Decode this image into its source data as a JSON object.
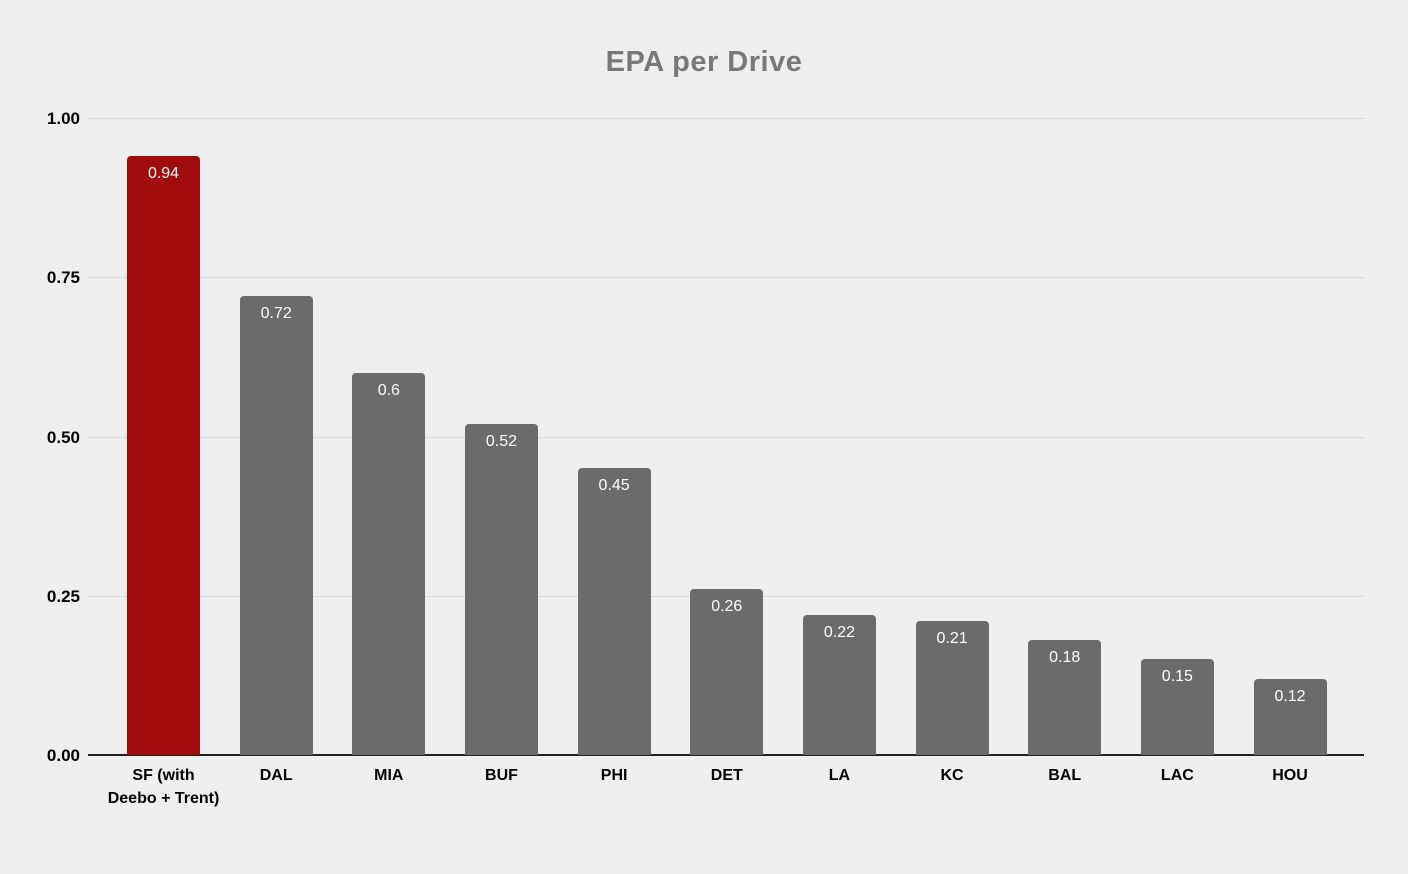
{
  "page": {
    "background_color": "#efefef"
  },
  "chart_data": {
    "type": "bar",
    "title": "EPA per Drive",
    "title_color": "#787878",
    "categories": [
      "SF (with Deebo + Trent)",
      "DAL",
      "MIA",
      "BUF",
      "PHI",
      "DET",
      "LA",
      "KC",
      "BAL",
      "LAC",
      "HOU"
    ],
    "values": [
      0.94,
      0.72,
      0.6,
      0.52,
      0.45,
      0.26,
      0.22,
      0.21,
      0.18,
      0.15,
      0.12
    ],
    "value_labels": [
      "0.94",
      "0.72",
      "0.6",
      "0.52",
      "0.45",
      "0.26",
      "0.22",
      "0.21",
      "0.18",
      "0.15",
      "0.12"
    ],
    "bar_colors": [
      "#a20b0b",
      "#6b6b6b",
      "#6b6b6b",
      "#6b6b6b",
      "#6b6b6b",
      "#6b6b6b",
      "#6b6b6b",
      "#6b6b6b",
      "#6b6b6b",
      "#6b6b6b",
      "#6b6b6b"
    ],
    "highlight_index": 0,
    "highlight_color": "#a20b0b",
    "default_bar_color": "#6b6b6b",
    "value_label_color": "#ffffff",
    "xlabel": "",
    "ylabel": "",
    "ylim": [
      0,
      1.0
    ],
    "yticks": [
      "0.00",
      "0.25",
      "0.50",
      "0.75",
      "1.00"
    ],
    "ytick_label_color": "#000000",
    "category_label_color": "#000000",
    "grid": true,
    "gridline_color": "#d9d9d9",
    "axis_line_color": "#212121",
    "legend": "none"
  }
}
